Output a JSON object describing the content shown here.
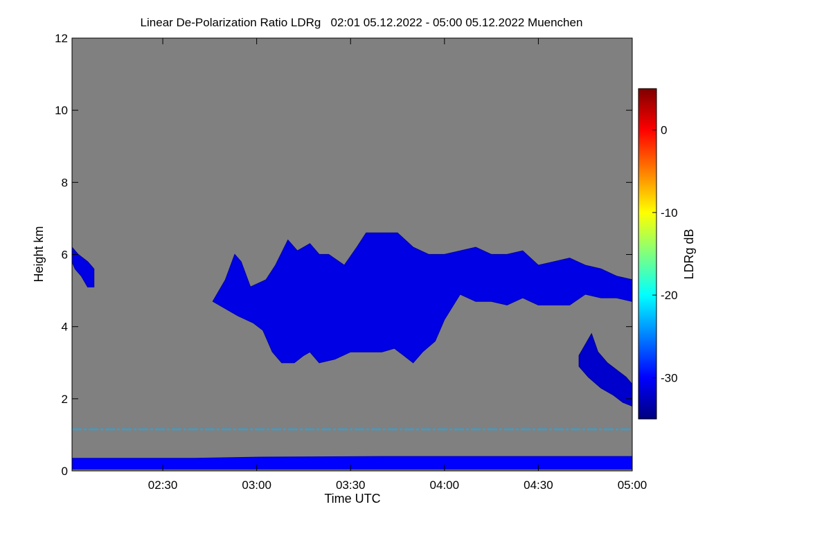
{
  "chart_data": {
    "type": "heatmap",
    "title": "Linear De-Polarization Ratio LDRg   02:01 05.12.2022 - 05:00 05.12.2022 Muenchen",
    "xlabel": "Time UTC",
    "ylabel": "Height km",
    "x_range": [
      "02:01",
      "05:00"
    ],
    "x_ticks": [
      {
        "label": "02:30",
        "minutes": 150
      },
      {
        "label": "03:00",
        "minutes": 180
      },
      {
        "label": "03:30",
        "minutes": 210
      },
      {
        "label": "04:00",
        "minutes": 240
      },
      {
        "label": "04:30",
        "minutes": 270
      },
      {
        "label": "05:00",
        "minutes": 300
      }
    ],
    "x_minutes_range": [
      121,
      300
    ],
    "y_range": [
      0,
      12
    ],
    "y_ticks": [
      0,
      2,
      4,
      6,
      8,
      10,
      12
    ],
    "background_color": "#808080",
    "colorbar": {
      "label": "LDRg dB",
      "range": [
        -35,
        5
      ],
      "ticks": [
        0,
        -10,
        -20,
        -30
      ],
      "colormap": [
        "#00007f",
        "#0000ff",
        "#007fff",
        "#00ffff",
        "#7fff7f",
        "#ffff00",
        "#ff7f00",
        "#ff0000",
        "#7f0000"
      ]
    },
    "features": [
      {
        "name": "main cloud",
        "ldr_db": -31,
        "polygon": [
          [
            166,
            4.7
          ],
          [
            170,
            5.3
          ],
          [
            173,
            6.0
          ],
          [
            175,
            5.8
          ],
          [
            178,
            5.1
          ],
          [
            183,
            5.3
          ],
          [
            186,
            5.7
          ],
          [
            190,
            6.4
          ],
          [
            193,
            6.1
          ],
          [
            197,
            6.3
          ],
          [
            200,
            6.0
          ],
          [
            203,
            6.0
          ],
          [
            208,
            5.7
          ],
          [
            212,
            6.2
          ],
          [
            215,
            6.6
          ],
          [
            220,
            6.6
          ],
          [
            225,
            6.6
          ],
          [
            230,
            6.2
          ],
          [
            235,
            6.0
          ],
          [
            240,
            6.0
          ],
          [
            245,
            6.1
          ],
          [
            250,
            6.2
          ],
          [
            255,
            6.0
          ],
          [
            260,
            6.0
          ],
          [
            265,
            6.1
          ],
          [
            270,
            5.7
          ],
          [
            275,
            5.8
          ],
          [
            280,
            5.9
          ],
          [
            285,
            5.7
          ],
          [
            290,
            5.6
          ],
          [
            295,
            5.4
          ],
          [
            300,
            5.3
          ],
          [
            300,
            4.7
          ],
          [
            295,
            4.8
          ],
          [
            290,
            4.8
          ],
          [
            285,
            4.9
          ],
          [
            280,
            4.6
          ],
          [
            275,
            4.6
          ],
          [
            270,
            4.6
          ],
          [
            265,
            4.8
          ],
          [
            260,
            4.6
          ],
          [
            255,
            4.7
          ],
          [
            250,
            4.7
          ],
          [
            245,
            4.9
          ],
          [
            240,
            4.2
          ],
          [
            237,
            3.6
          ],
          [
            233,
            3.3
          ],
          [
            230,
            3.0
          ],
          [
            227,
            3.2
          ],
          [
            224,
            3.4
          ],
          [
            220,
            3.3
          ],
          [
            215,
            3.3
          ],
          [
            210,
            3.3
          ],
          [
            205,
            3.1
          ],
          [
            200,
            3.0
          ],
          [
            197,
            3.3
          ],
          [
            195,
            3.2
          ],
          [
            192,
            3.0
          ],
          [
            188,
            3.0
          ],
          [
            185,
            3.3
          ],
          [
            182,
            3.9
          ],
          [
            179,
            4.1
          ],
          [
            174,
            4.3
          ],
          [
            170,
            4.5
          ]
        ]
      },
      {
        "name": "lower descending cloud",
        "ldr_db": -32,
        "polygon": [
          [
            283,
            3.2
          ],
          [
            285,
            3.5
          ],
          [
            287,
            3.8
          ],
          [
            289,
            3.3
          ],
          [
            292,
            3.0
          ],
          [
            295,
            2.8
          ],
          [
            298,
            2.6
          ],
          [
            300,
            2.4
          ],
          [
            300,
            1.8
          ],
          [
            297,
            1.9
          ],
          [
            294,
            2.1
          ],
          [
            290,
            2.3
          ],
          [
            286,
            2.6
          ],
          [
            283,
            2.9
          ]
        ]
      },
      {
        "name": "early cloud patch",
        "ldr_db": -31,
        "polygon": [
          [
            121,
            6.2
          ],
          [
            123,
            6.0
          ],
          [
            126,
            5.8
          ],
          [
            128,
            5.6
          ],
          [
            128,
            5.1
          ],
          [
            126,
            5.1
          ],
          [
            124,
            5.4
          ],
          [
            122,
            5.6
          ],
          [
            121,
            5.8
          ]
        ]
      },
      {
        "name": "aerosol boundary layer",
        "ldr_db": -30,
        "polygon": [
          [
            121,
            0.35
          ],
          [
            160,
            0.35
          ],
          [
            180,
            0.38
          ],
          [
            220,
            0.4
          ],
          [
            260,
            0.4
          ],
          [
            300,
            0.4
          ],
          [
            300,
            0.05
          ],
          [
            121,
            0.05
          ]
        ]
      }
    ],
    "layers": [
      {
        "name": "thin layer",
        "height_km": 1.15,
        "ldr_db": -23
      }
    ]
  }
}
